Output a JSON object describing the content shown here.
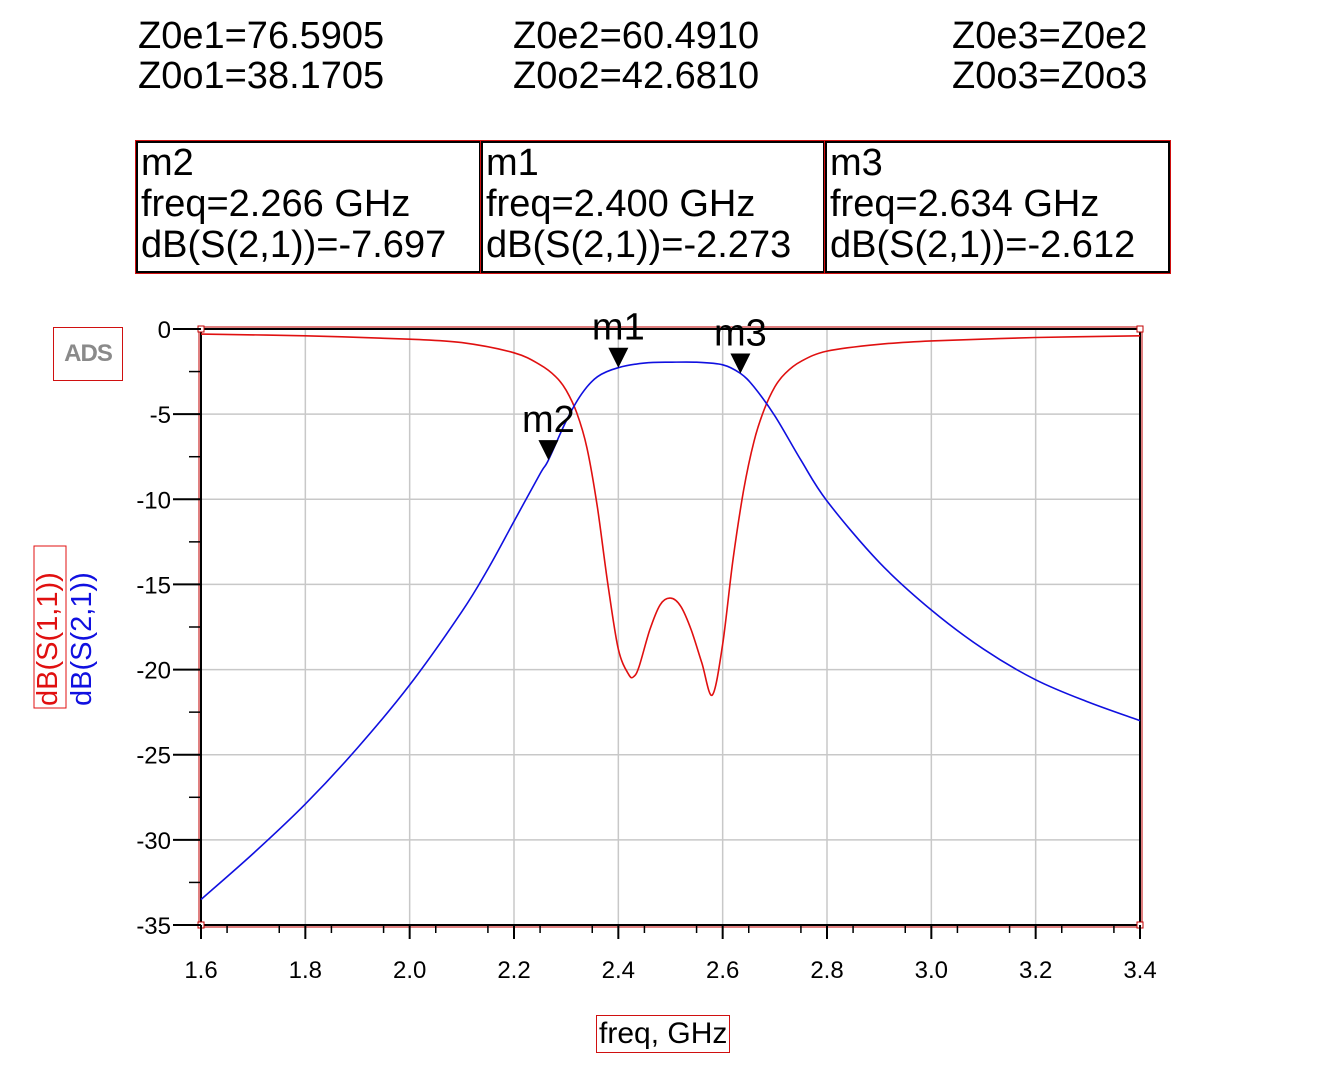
{
  "params": {
    "z0e1": "Z0e1=76.5905",
    "z0o1": "Z0o1=38.1705",
    "z0e2": "Z0e2=60.4910",
    "z0o2": "Z0o2=42.6810",
    "z0e3": "Z0e3=Z0e2",
    "z0o3": "Z0o3=Z0o3"
  },
  "markers": [
    {
      "name": "m2",
      "freq": "freq=2.266 GHz",
      "value": "dB(S(2,1))=-7.697"
    },
    {
      "name": "m1",
      "freq": "freq=2.400 GHz",
      "value": "dB(S(2,1))=-2.273"
    },
    {
      "name": "m3",
      "freq": "freq=2.634 GHz",
      "value": "dB(S(2,1))=-2.612"
    }
  ],
  "logo": "ADS",
  "colors": {
    "s11": "#e01010",
    "s21": "#1010e0",
    "grid": "#c8c8c8",
    "frame": "#c00000"
  },
  "chart_data": {
    "type": "line",
    "xlabel": "freq, GHz",
    "ylabel_series": [
      "dB(S(1,1))",
      "dB(S(2,1))"
    ],
    "xlim": [
      1.6,
      3.4
    ],
    "ylim": [
      -35,
      0
    ],
    "xticks": [
      "1.6",
      "1.8",
      "2.0",
      "2.2",
      "2.4",
      "2.6",
      "2.8",
      "3.0",
      "3.2",
      "3.4"
    ],
    "yticks": [
      "0",
      "-5",
      "-10",
      "-15",
      "-20",
      "-25",
      "-30",
      "-35"
    ],
    "grid": true,
    "series": [
      {
        "name": "dB(S(1,1))",
        "color": "#e01010",
        "x": [
          1.6,
          1.8,
          2.0,
          2.1,
          2.2,
          2.25,
          2.28,
          2.3,
          2.32,
          2.34,
          2.36,
          2.38,
          2.4,
          2.42,
          2.43,
          2.44,
          2.46,
          2.48,
          2.5,
          2.52,
          2.54,
          2.56,
          2.58,
          2.6,
          2.62,
          2.64,
          2.66,
          2.68,
          2.7,
          2.72,
          2.75,
          2.8,
          2.9,
          3.0,
          3.2,
          3.4
        ],
        "y": [
          -0.3,
          -0.4,
          -0.6,
          -0.8,
          -1.4,
          -2.1,
          -2.8,
          -3.6,
          -4.9,
          -7.0,
          -10.5,
          -15.0,
          -18.8,
          -20.3,
          -20.4,
          -19.8,
          -17.7,
          -16.2,
          -15.8,
          -16.3,
          -17.7,
          -19.6,
          -21.5,
          -18.5,
          -13.5,
          -9.5,
          -6.6,
          -4.7,
          -3.4,
          -2.6,
          -1.9,
          -1.3,
          -0.9,
          -0.7,
          -0.5,
          -0.4
        ]
      },
      {
        "name": "dB(S(2,1))",
        "color": "#1010e0",
        "x": [
          1.6,
          1.7,
          1.8,
          1.9,
          2.0,
          2.1,
          2.15,
          2.2,
          2.25,
          2.266,
          2.3,
          2.33,
          2.36,
          2.4,
          2.45,
          2.5,
          2.55,
          2.6,
          2.634,
          2.66,
          2.7,
          2.75,
          2.8,
          2.9,
          3.0,
          3.1,
          3.2,
          3.3,
          3.4
        ],
        "y": [
          -33.5,
          -30.8,
          -27.9,
          -24.6,
          -20.9,
          -16.6,
          -14.1,
          -11.3,
          -8.5,
          -7.7,
          -5.4,
          -3.8,
          -2.8,
          -2.27,
          -2.0,
          -1.95,
          -1.95,
          -2.1,
          -2.61,
          -3.4,
          -5.1,
          -7.7,
          -10.1,
          -13.7,
          -16.5,
          -18.8,
          -20.6,
          -21.9,
          -23.0
        ]
      }
    ],
    "markers": [
      {
        "name": "m2",
        "x": 2.266,
        "y": -7.697
      },
      {
        "name": "m1",
        "x": 2.4,
        "y": -2.273
      },
      {
        "name": "m3",
        "x": 2.634,
        "y": -2.612
      }
    ]
  }
}
